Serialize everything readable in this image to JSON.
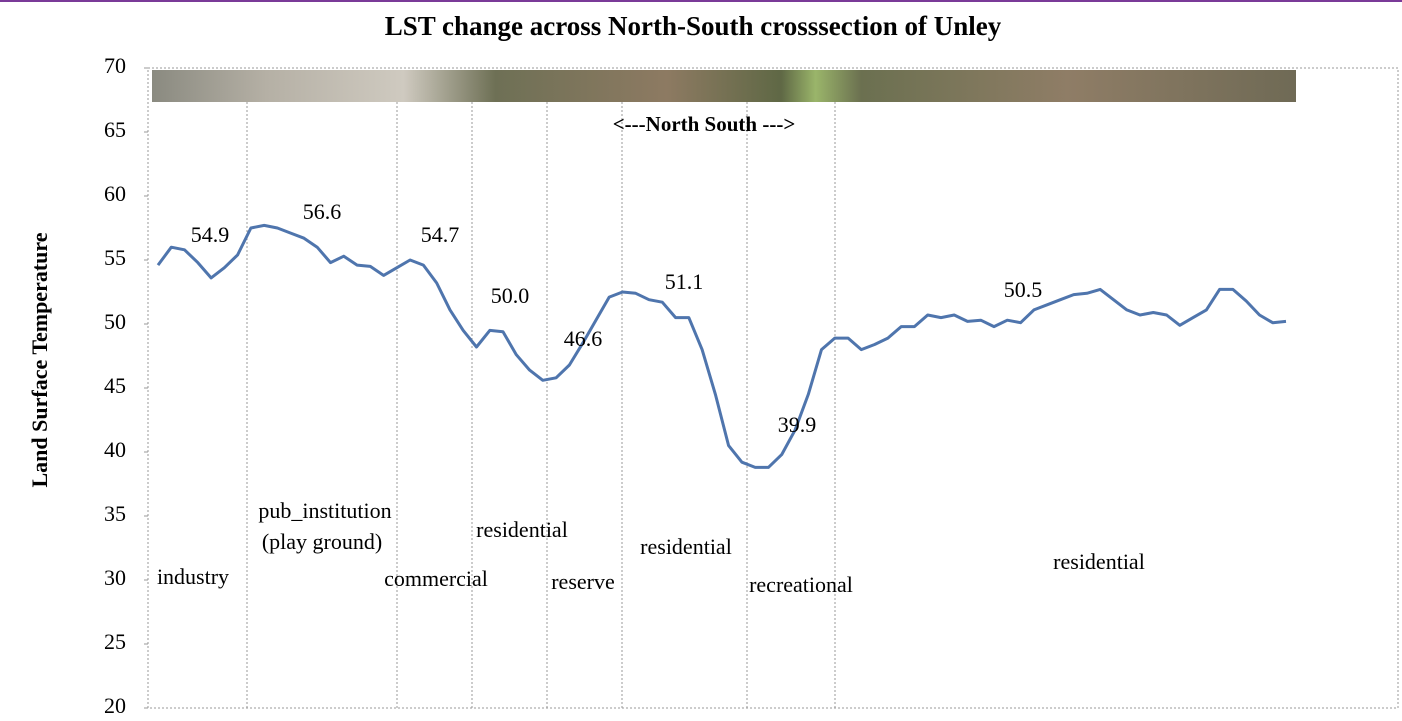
{
  "chart_data": {
    "type": "line",
    "title": "LST change across North-South crosssection of Unley",
    "y_label": "Land Surface Temperature",
    "direction_label": "<---North  South --->",
    "series": [
      {
        "name": "LST",
        "color": "#4f75ad",
        "values": [
          54.6,
          56.0,
          55.8,
          54.8,
          53.6,
          54.4,
          55.4,
          57.5,
          57.7,
          57.5,
          57.1,
          56.7,
          56.0,
          54.8,
          55.3,
          54.6,
          54.5,
          53.8,
          54.4,
          55.0,
          54.6,
          53.2,
          51.1,
          49.5,
          48.2,
          49.5,
          49.4,
          47.6,
          46.4,
          45.6,
          45.8,
          46.8,
          48.5,
          50.3,
          52.1,
          52.5,
          52.4,
          51.9,
          51.7,
          50.5,
          50.5,
          48.0,
          44.5,
          40.5,
          39.2,
          38.8,
          38.8,
          39.8,
          41.7,
          44.5,
          48.0,
          48.9,
          48.9,
          48.0,
          48.4,
          48.9,
          49.8,
          49.8,
          50.7,
          50.5,
          50.7,
          50.2,
          50.3,
          49.8,
          50.3,
          50.1,
          51.1,
          51.5,
          51.9,
          52.3,
          52.4,
          52.7,
          51.9,
          51.1,
          50.7,
          50.9,
          50.7,
          49.9,
          50.5,
          51.1,
          52.7,
          52.7,
          51.8,
          50.7,
          50.1,
          50.2
        ]
      }
    ],
    "value_labels": [
      "54.9",
      "56.6",
      "54.7",
      "50.0",
      "46.6",
      "51.1",
      "39.9",
      "50.5"
    ],
    "zone_labels": [
      "industry",
      "pub_institution",
      "(play ground)",
      "commercial",
      "residential",
      "reserve",
      "residential",
      "recreational",
      "residential"
    ],
    "ylim": [
      20,
      70
    ],
    "yticks": [
      20,
      25,
      30,
      35,
      40,
      45,
      50,
      55,
      60,
      65,
      70
    ],
    "grid": false
  }
}
